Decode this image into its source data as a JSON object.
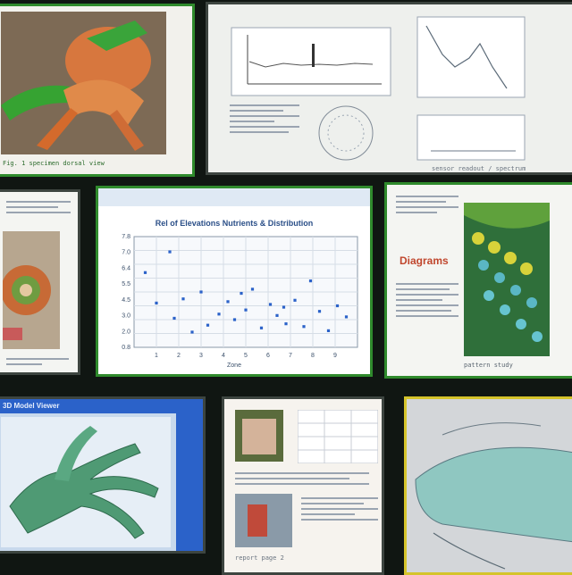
{
  "tiles": {
    "top_left": {
      "caption": "Fig. 1   specimen dorsal view"
    },
    "top_right": {
      "caption": "sensor readout / spectrum"
    },
    "scatter": {
      "title": "Rel of Elevations Nutrients & Distribution",
      "xlabel": "Zone",
      "caption": "scatter plot window"
    },
    "right_mid": {
      "title": "Diagrams",
      "caption": "pattern study"
    },
    "bottom_left": {
      "header": "3D Model Viewer"
    },
    "bottom_mid": {
      "caption": "report page 2"
    }
  },
  "chart_data": {
    "type": "scatter",
    "title": "Rel of Elevations Nutrients & Distribution",
    "xlabel": "Zone",
    "ylabel": "",
    "xlim": [
      0,
      10
    ],
    "ylim": [
      0,
      8
    ],
    "x_ticks": [
      "1",
      "2",
      "3",
      "4",
      "5",
      "6",
      "7",
      "8",
      "9"
    ],
    "y_ticks": [
      "0.8",
      "2.0",
      "3.0",
      "4.5",
      "5.5",
      "6.4",
      "7.0",
      "7.8"
    ],
    "grid": true,
    "points": [
      {
        "x": 0.5,
        "y": 5.4
      },
      {
        "x": 1.6,
        "y": 6.9
      },
      {
        "x": 1.0,
        "y": 3.2
      },
      {
        "x": 1.8,
        "y": 2.1
      },
      {
        "x": 2.2,
        "y": 3.5
      },
      {
        "x": 2.6,
        "y": 1.1
      },
      {
        "x": 3.0,
        "y": 4.0
      },
      {
        "x": 3.3,
        "y": 1.6
      },
      {
        "x": 3.8,
        "y": 2.4
      },
      {
        "x": 4.2,
        "y": 3.3
      },
      {
        "x": 4.5,
        "y": 2.0
      },
      {
        "x": 5.0,
        "y": 2.7
      },
      {
        "x": 5.3,
        "y": 4.2
      },
      {
        "x": 5.7,
        "y": 1.4
      },
      {
        "x": 6.1,
        "y": 3.1
      },
      {
        "x": 6.4,
        "y": 2.3
      },
      {
        "x": 6.8,
        "y": 1.7
      },
      {
        "x": 7.2,
        "y": 3.4
      },
      {
        "x": 7.6,
        "y": 1.5
      },
      {
        "x": 7.9,
        "y": 4.8
      },
      {
        "x": 8.3,
        "y": 2.6
      },
      {
        "x": 8.7,
        "y": 1.2
      },
      {
        "x": 9.1,
        "y": 3.0
      },
      {
        "x": 9.5,
        "y": 2.2
      },
      {
        "x": 4.8,
        "y": 3.9
      },
      {
        "x": 6.7,
        "y": 2.9
      }
    ]
  },
  "colors": {
    "accent": "#2f8a2c",
    "point": "#2b62c9",
    "header": "#2b62c9"
  }
}
